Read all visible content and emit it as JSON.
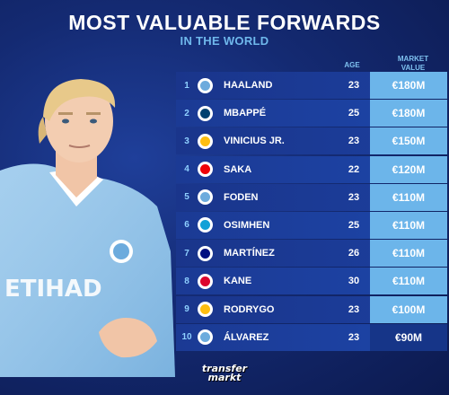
{
  "header": {
    "title": "MOST VALUABLE FORWARDS",
    "subtitle": "IN THE WORLD",
    "col_age": "AGE",
    "col_value_1": "MARKET",
    "col_value_2": "VALUE"
  },
  "players": [
    {
      "rank": "1",
      "name": "HAALAND",
      "age": "23",
      "value": "€180M",
      "club_color": "#6cabdd"
    },
    {
      "rank": "2",
      "name": "MBAPPÉ",
      "age": "25",
      "value": "€180M",
      "club_color": "#004170"
    },
    {
      "rank": "3",
      "name": "VINICIUS JR.",
      "age": "23",
      "value": "€150M",
      "club_color": "#febe10"
    },
    {
      "rank": "4",
      "name": "SAKA",
      "age": "22",
      "value": "€120M",
      "club_color": "#ef0107"
    },
    {
      "rank": "5",
      "name": "FODEN",
      "age": "23",
      "value": "€110M",
      "club_color": "#6cabdd"
    },
    {
      "rank": "6",
      "name": "OSIMHEN",
      "age": "25",
      "value": "€110M",
      "club_color": "#12a0d7"
    },
    {
      "rank": "7",
      "name": "MARTÍNEZ",
      "age": "26",
      "value": "€110M",
      "club_color": "#010e80"
    },
    {
      "rank": "8",
      "name": "KANE",
      "age": "30",
      "value": "€110M",
      "club_color": "#dc052d"
    },
    {
      "rank": "9",
      "name": "RODRYGO",
      "age": "23",
      "value": "€100M",
      "club_color": "#febe10"
    },
    {
      "rank": "10",
      "name": "ÁLVAREZ",
      "age": "23",
      "value": "€90M",
      "club_color": "#6cabdd"
    }
  ],
  "footer": {
    "logo_line1": "transfer",
    "logo_line2": "markt"
  }
}
